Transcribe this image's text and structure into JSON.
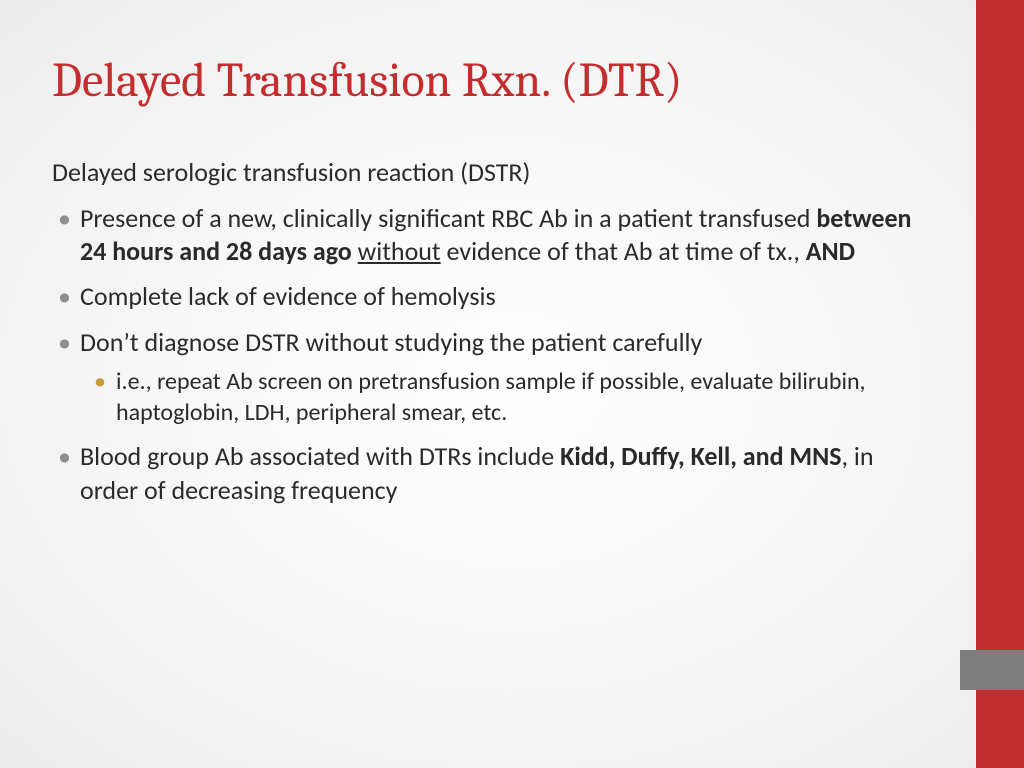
{
  "colors": {
    "title": "#c32d2d",
    "body_text": "#2a2a2a",
    "bullet_gray": "#8f8f8f",
    "bullet_gold": "#c89a3a",
    "sidebar_red": "#c32d2d",
    "sidebar_gray": "#7e7e7e",
    "background_center": "#ffffff",
    "background_edge": "#ececec"
  },
  "typography": {
    "title_fontsize": 48,
    "title_family": "Cambria",
    "body_fontsize": 26,
    "sub_fontsize": 24
  },
  "slide": {
    "title": "Delayed Transfusion Rxn. (DTR)",
    "subtitle": "Delayed serologic transfusion reaction (DSTR)",
    "bullets": [
      {
        "segments": [
          {
            "text": "Presence of a new, clinically significant RBC Ab in a patient transfused "
          },
          {
            "text": "between 24 hours and 28 days ago",
            "bold": true
          },
          {
            "text": " "
          },
          {
            "text": "without",
            "underline": true
          },
          {
            "text": " evidence of that Ab at time of tx., "
          },
          {
            "text": "AND",
            "bold": true
          }
        ]
      },
      {
        "segments": [
          {
            "text": "Complete lack of evidence of hemolysis"
          }
        ]
      },
      {
        "segments": [
          {
            "text": "Don’t diagnose DSTR without studying the patient carefully"
          }
        ],
        "children": [
          {
            "segments": [
              {
                "text": "i.e., repeat Ab screen on pretransfusion sample if possible, evaluate bilirubin, haptoglobin, LDH, peripheral smear, etc."
              }
            ]
          }
        ]
      },
      {
        "segments": [
          {
            "text": "Blood group Ab associated with DTRs include "
          },
          {
            "text": "Kidd, Duffy, Kell, and MNS",
            "bold": true
          },
          {
            "text": ", in order of decreasing frequency"
          }
        ]
      }
    ]
  }
}
